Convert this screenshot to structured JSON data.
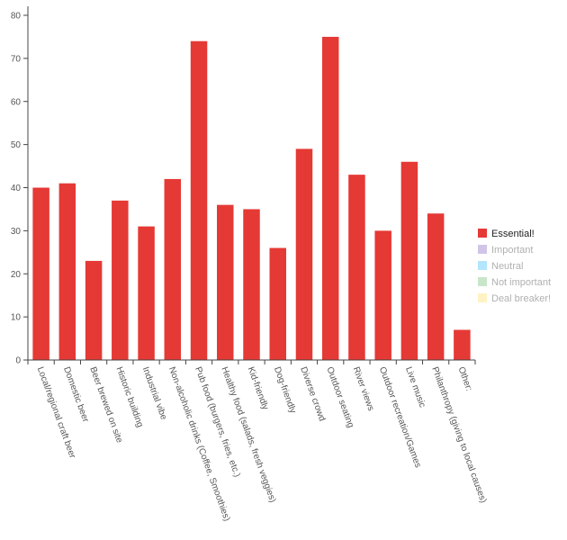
{
  "chart_data": {
    "type": "bar",
    "categories": [
      "Local/regional craft beer",
      "Domestic beer",
      "Beer brewed on site",
      "Historic building",
      "Industrial vibe",
      "Non-alcoholic drinks (Coffee, Smoothies)",
      "Pub food (burgers, fries, etc.)",
      "Healthy food (salads, fresh veggies)",
      "Kid-friendly",
      "Dog-friendly",
      "Diverse crowd",
      "Outdoor seating",
      "River views",
      "Outdoor recreation/Games",
      "Live music",
      "Philanthropy (giving to local causes)",
      "Other:"
    ],
    "series": [
      {
        "name": "Essential!",
        "values": [
          40,
          41,
          23,
          37,
          31,
          42,
          74,
          36,
          35,
          26,
          49,
          75,
          43,
          30,
          46,
          34,
          7
        ]
      }
    ],
    "ylim": [
      0,
      80
    ],
    "yticks": [
      0,
      10,
      20,
      30,
      40,
      50,
      60,
      70,
      80
    ],
    "grid": false,
    "legend_position": "right",
    "legend": [
      {
        "label": "Essential!",
        "color": "#e53935",
        "active": true
      },
      {
        "label": "Important",
        "color": "#d1c4e9",
        "active": false
      },
      {
        "label": "Neutral",
        "color": "#b3e5fc",
        "active": false
      },
      {
        "label": "Not important",
        "color": "#c8e6c9",
        "active": false
      },
      {
        "label": "Deal breaker!",
        "color": "#fff3c4",
        "active": false
      }
    ],
    "bar_color": "#e53935",
    "inactive_text_color": "#b0b0b0"
  }
}
